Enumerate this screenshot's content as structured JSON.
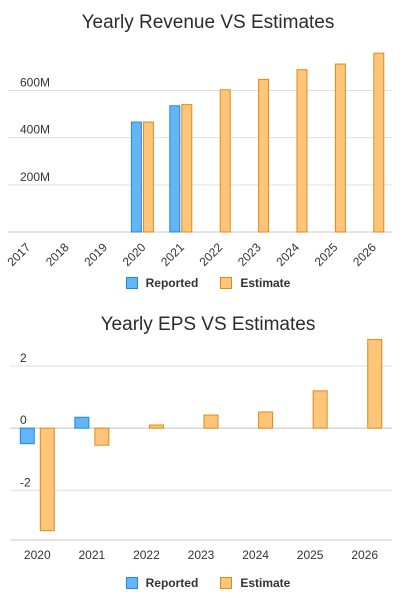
{
  "colors": {
    "reported_fill": "#64b5f6",
    "reported_stroke": "#1e88e5",
    "estimate_fill": "#ffc57a",
    "estimate_stroke": "#e08a12",
    "grid": "#e0e0e0",
    "axis": "#c8c8c8"
  },
  "chart_data": [
    {
      "type": "bar",
      "title": "Yearly Revenue VS Estimates",
      "xlabel": "",
      "ylabel": "",
      "categories": [
        "2017",
        "2018",
        "2019",
        "2020",
        "2021",
        "2022",
        "2023",
        "2024",
        "2025",
        "2026"
      ],
      "y_ticks": [
        {
          "value": 200,
          "label": "200M"
        },
        {
          "value": 400,
          "label": "400M"
        },
        {
          "value": 600,
          "label": "600M"
        }
      ],
      "ylim": [
        0,
        780
      ],
      "x_label_rotation": -45,
      "grid": true,
      "legend": "bottom",
      "series": [
        {
          "name": "Reported",
          "values": [
            null,
            null,
            null,
            466,
            535,
            null,
            null,
            null,
            null,
            null
          ]
        },
        {
          "name": "Estimate",
          "values": [
            null,
            null,
            null,
            466,
            540,
            603,
            647,
            688,
            712,
            758
          ]
        }
      ]
    },
    {
      "type": "bar",
      "title": "Yearly EPS VS Estimates",
      "xlabel": "",
      "ylabel": "",
      "categories": [
        "2020",
        "2021",
        "2022",
        "2023",
        "2024",
        "2025",
        "2026"
      ],
      "y_ticks": [
        {
          "value": -2,
          "label": "-2"
        },
        {
          "value": 0,
          "label": "0"
        },
        {
          "value": 2,
          "label": "2"
        }
      ],
      "ylim": [
        -3.6,
        2.9
      ],
      "x_label_rotation": 0,
      "grid": true,
      "legend": "bottom",
      "series": [
        {
          "name": "Reported",
          "values": [
            -0.5,
            0.35,
            null,
            null,
            null,
            null,
            null
          ]
        },
        {
          "name": "Estimate",
          "values": [
            -3.3,
            -0.55,
            0.1,
            0.42,
            0.52,
            1.2,
            2.85
          ]
        }
      ]
    }
  ]
}
